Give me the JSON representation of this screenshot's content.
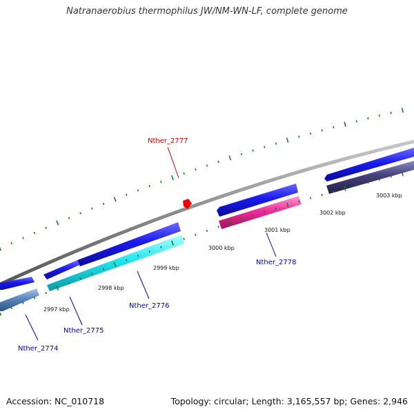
{
  "title": "Natranaerobius thermophilus JW/NM-WN-LF, complete genome",
  "footer": {
    "accession": "Accession: NC_010718",
    "summary": "Topology: circular; Length: 3,165,557 bp; Genes: 2,946"
  },
  "colors": {
    "backbone": "#8c8c8c",
    "tick": "#1a7a1a",
    "gene_blue": "#1a1aee",
    "highlight_red": "#cc0000",
    "label_blue": "#0000aa",
    "cyan": "#22e6f0",
    "pink": "#ee2d9a",
    "steelblue": "#5a86bb",
    "slate": "#44407a"
  },
  "kbp_labels": [
    "2997 kbp",
    "2998 kbp",
    "2999 kbp",
    "3000 kbp",
    "3001 kbp",
    "3002 kbp",
    "3003 kbp"
  ],
  "genes": [
    {
      "name": "Nther_2774",
      "color": "label_blue"
    },
    {
      "name": "Nther_2775",
      "color": "label_blue"
    },
    {
      "name": "Nther_2776",
      "color": "label_blue"
    },
    {
      "name": "Nther_2777",
      "color": "highlight_red"
    },
    {
      "name": "Nther_2778",
      "color": "label_blue"
    }
  ]
}
